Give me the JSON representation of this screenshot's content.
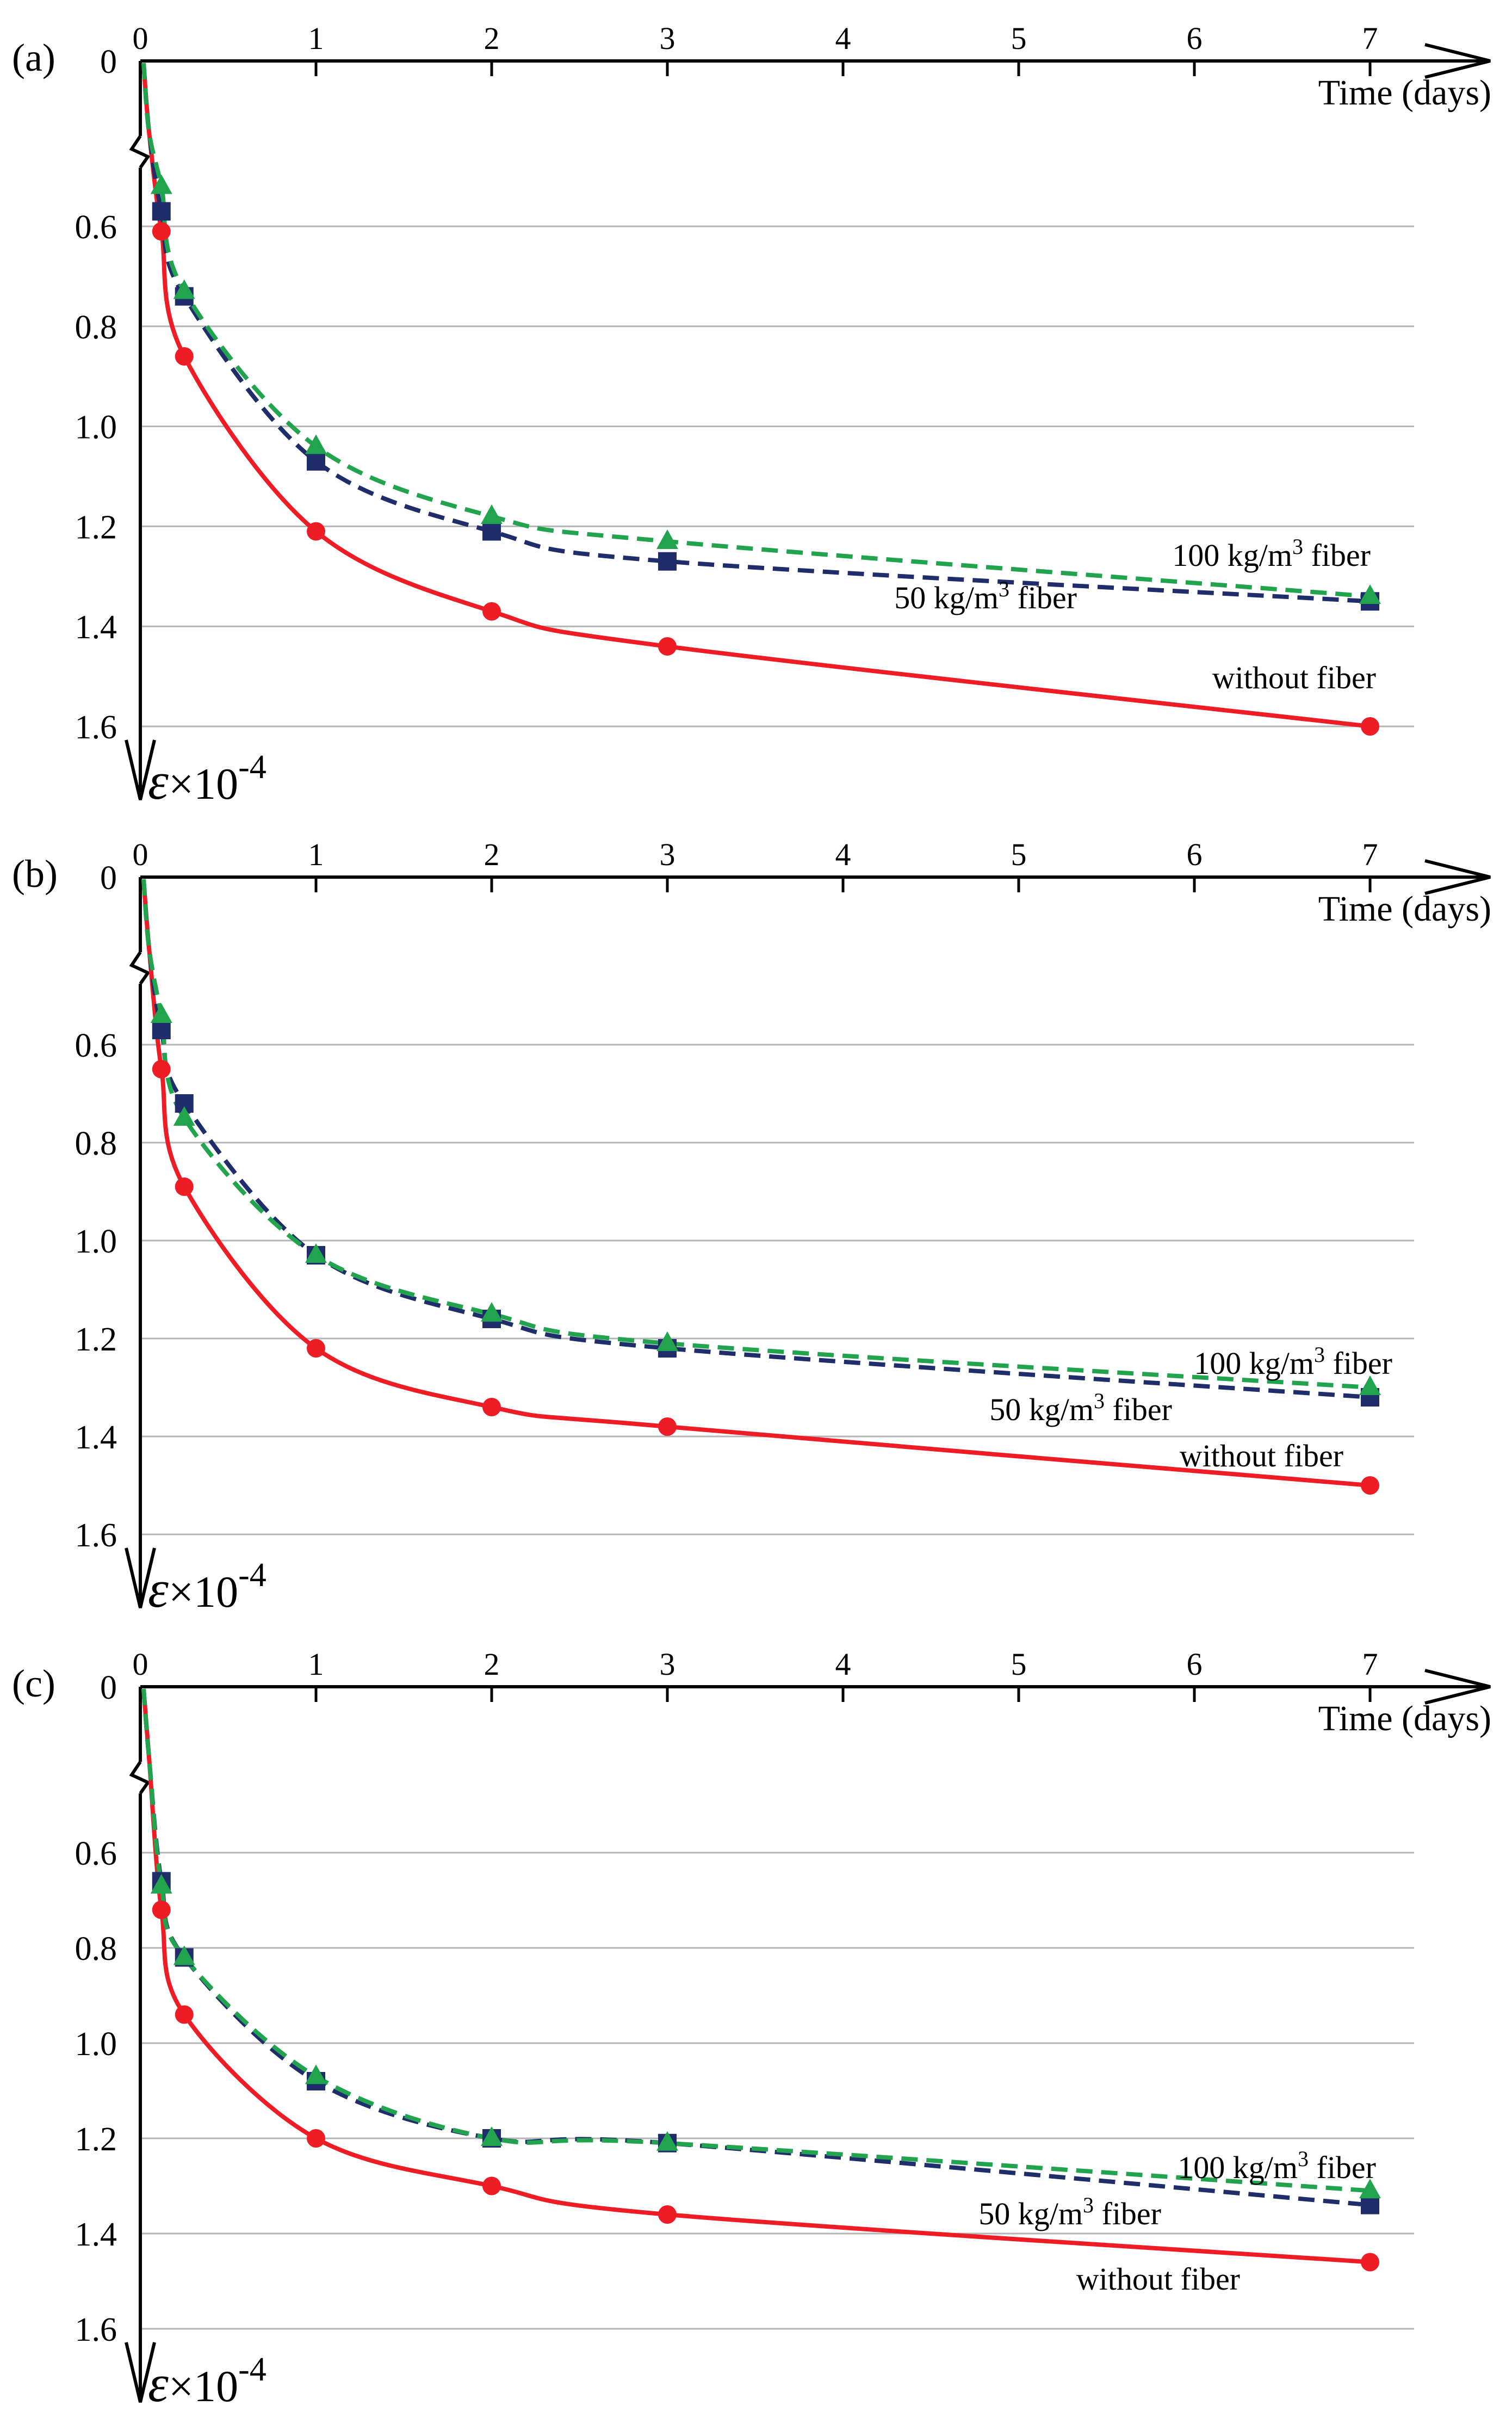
{
  "colors": {
    "without_fiber": "#ee1c25",
    "fiber_50": "#1f2d6b",
    "fiber_100": "#22a44f",
    "grid": "#b4b4b4",
    "axis": "#000000"
  },
  "axis_text": {
    "x_title": "Time (days)",
    "y_symbol": "ε",
    "y_multiplier": "×10",
    "y_exponent": "-4"
  },
  "chart_data": [
    {
      "panel_label": "(a)",
      "type": "line",
      "xlabel": "Time (days)",
      "ylabel": "ε×10^-4",
      "x_ticks": [
        "0",
        "1",
        "2",
        "3",
        "4",
        "5",
        "6",
        "7"
      ],
      "y_ticks": [
        "0",
        "0.6",
        "0.8",
        "1.0",
        "1.2",
        "1.4",
        "1.6"
      ],
      "ylim": [
        0.4,
        1.6
      ],
      "y_axis_break": true,
      "x": [
        0.12,
        0.25,
        1,
        2,
        3,
        7
      ],
      "series": [
        {
          "key": "fiber_100",
          "name": "100 kg/m³ fiber",
          "label_main": "100 kg/m",
          "label_sup": "3",
          "label_rest": " fiber",
          "marker": "triangle",
          "dashed": true,
          "values": [
            0.52,
            0.73,
            1.04,
            1.18,
            1.23,
            1.34
          ]
        },
        {
          "key": "fiber_50",
          "name": "50 kg/m³ fiber",
          "label_main": "50 kg/m",
          "label_sup": "3",
          "label_rest": " fiber",
          "marker": "square",
          "dashed": true,
          "values": [
            0.57,
            0.74,
            1.07,
            1.21,
            1.27,
            1.35
          ]
        },
        {
          "key": "without_fiber",
          "name": "without fiber",
          "label_main": "without fiber",
          "label_sup": "",
          "label_rest": "",
          "marker": "circle",
          "dashed": false,
          "values": [
            0.61,
            0.86,
            1.21,
            1.37,
            1.44,
            1.6
          ]
        }
      ]
    },
    {
      "panel_label": "(b)",
      "type": "line",
      "xlabel": "Time (days)",
      "ylabel": "ε×10^-4",
      "x_ticks": [
        "0",
        "1",
        "2",
        "3",
        "4",
        "5",
        "6",
        "7"
      ],
      "y_ticks": [
        "0",
        "0.6",
        "0.8",
        "1.0",
        "1.2",
        "1.4",
        "1.6"
      ],
      "ylim": [
        0.4,
        1.6
      ],
      "y_axis_break": true,
      "x": [
        0.12,
        0.25,
        1,
        2,
        3,
        7
      ],
      "series": [
        {
          "key": "fiber_100",
          "name": "100 kg/m³ fiber",
          "label_main": "100 kg/m",
          "label_sup": "3",
          "label_rest": " fiber",
          "marker": "triangle",
          "dashed": true,
          "values": [
            0.54,
            0.75,
            1.03,
            1.15,
            1.21,
            1.3
          ]
        },
        {
          "key": "fiber_50",
          "name": "50 kg/m³ fiber",
          "label_main": "50 kg/m",
          "label_sup": "3",
          "label_rest": " fiber",
          "marker": "square",
          "dashed": true,
          "values": [
            0.57,
            0.72,
            1.03,
            1.16,
            1.22,
            1.32
          ]
        },
        {
          "key": "without_fiber",
          "name": "without fiber",
          "label_main": "without fiber",
          "label_sup": "",
          "label_rest": "",
          "marker": "circle",
          "dashed": false,
          "values": [
            0.65,
            0.89,
            1.22,
            1.34,
            1.38,
            1.5
          ]
        }
      ]
    },
    {
      "panel_label": "(c)",
      "type": "line",
      "xlabel": "Time (days)",
      "ylabel": "ε×10^-4",
      "x_ticks": [
        "0",
        "1",
        "2",
        "3",
        "4",
        "5",
        "6",
        "7"
      ],
      "y_ticks": [
        "0",
        "0.6",
        "0.8",
        "1.0",
        "1.2",
        "1.4",
        "1.6"
      ],
      "ylim": [
        0.4,
        1.6
      ],
      "y_axis_break": true,
      "x": [
        0.12,
        0.25,
        1,
        2,
        3,
        7
      ],
      "series": [
        {
          "key": "fiber_100",
          "name": "100 kg/m³ fiber",
          "label_main": "100 kg/m",
          "label_sup": "3",
          "label_rest": " fiber",
          "marker": "triangle",
          "dashed": true,
          "values": [
            0.67,
            0.82,
            1.07,
            1.2,
            1.21,
            1.31
          ]
        },
        {
          "key": "fiber_50",
          "name": "50 kg/m³ fiber",
          "label_main": "50 kg/m",
          "label_sup": "3",
          "label_rest": " fiber",
          "marker": "square",
          "dashed": true,
          "values": [
            0.66,
            0.82,
            1.08,
            1.2,
            1.21,
            1.34
          ]
        },
        {
          "key": "without_fiber",
          "name": "without fiber",
          "label_main": "without fiber",
          "label_sup": "",
          "label_rest": "",
          "marker": "circle",
          "dashed": false,
          "values": [
            0.72,
            0.94,
            1.2,
            1.3,
            1.36,
            1.46
          ]
        }
      ]
    }
  ]
}
